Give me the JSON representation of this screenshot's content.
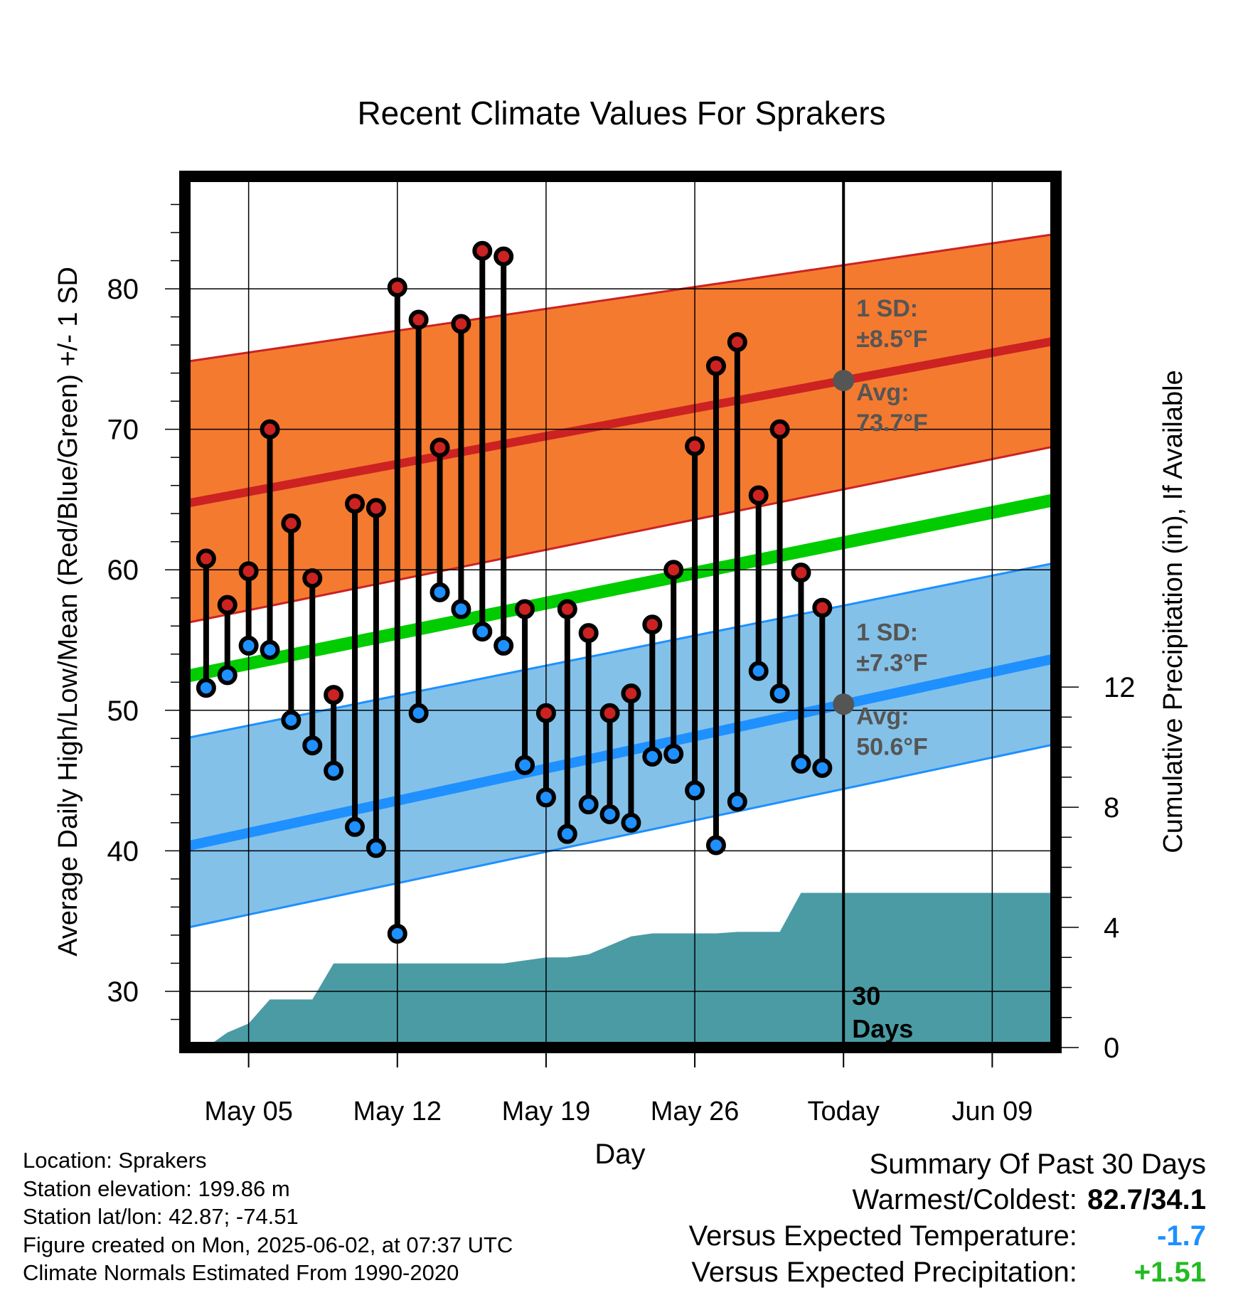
{
  "title": "Recent Climate Values For Sprakers",
  "colors": {
    "high": "#cc2222",
    "low": "#1e90ff",
    "mean": "#00cc00",
    "high_band": "#f47a30",
    "low_band": "#84c1e8",
    "precip": "#4a9ba4",
    "annotation": "#555555",
    "temp_anomaly": "#1e90ff",
    "precip_anomaly": "#22bb22"
  },
  "chart_data": {
    "type": "line",
    "title": "Recent Climate Values For Sprakers",
    "xlabel": "Day",
    "ylabel": "Average Daily High/Low/Mean (Red/Blue/Green) +/- 1 SD",
    "y2label": "Cumulative Precipitation (in), If Available",
    "ylim": [
      26,
      88
    ],
    "y2lim": [
      0,
      29
    ],
    "xlim": [
      "2025-05-02",
      "2025-06-12"
    ],
    "x_ticks": [
      {
        "date": "2025-05-05",
        "label": "May 05"
      },
      {
        "date": "2025-05-12",
        "label": "May 12"
      },
      {
        "date": "2025-05-19",
        "label": "May 19"
      },
      {
        "date": "2025-05-26",
        "label": "May 26"
      },
      {
        "date": "2025-06-02",
        "label": "Today"
      },
      {
        "date": "2025-06-09",
        "label": "Jun 09"
      }
    ],
    "y_ticks": [
      30,
      40,
      50,
      60,
      70,
      80
    ],
    "y2_ticks": [
      0,
      4,
      8,
      12
    ],
    "grid": true,
    "today": "2025-06-02",
    "today_label": [
      "30",
      "Days"
    ],
    "normals": {
      "high_avg": {
        "start": [
          "2025-05-02",
          64.7
        ],
        "end": [
          "2025-06-12",
          76.3
        ]
      },
      "high_upper": {
        "start": [
          "2025-05-02",
          74.8
        ],
        "end": [
          "2025-06-12",
          83.9
        ]
      },
      "high_lower": {
        "start": [
          "2025-05-02",
          56.2
        ],
        "end": [
          "2025-06-12",
          68.8
        ]
      },
      "mean_avg": {
        "start": [
          "2025-05-02",
          52.4
        ],
        "end": [
          "2025-06-12",
          65.0
        ]
      },
      "low_avg": {
        "start": [
          "2025-05-02",
          40.3
        ],
        "end": [
          "2025-06-12",
          53.7
        ]
      },
      "low_upper": {
        "start": [
          "2025-05-02",
          48.0
        ],
        "end": [
          "2025-06-12",
          60.5
        ]
      },
      "low_lower": {
        "start": [
          "2025-05-02",
          34.5
        ],
        "end": [
          "2025-06-12",
          47.6
        ]
      }
    },
    "annotations": {
      "high_sd": [
        "1 SD:",
        "±8.5°F"
      ],
      "high_avg": [
        "Avg:",
        "73.7°F"
      ],
      "low_sd": [
        "1 SD:",
        "±7.3°F"
      ],
      "low_avg": [
        "Avg:",
        "50.6°F"
      ],
      "high_avg_value": 73.7,
      "low_avg_value": 50.6
    },
    "series": [
      {
        "name": "High",
        "x": [
          "2025-05-03",
          "2025-05-04",
          "2025-05-05",
          "2025-05-06",
          "2025-05-07",
          "2025-05-08",
          "2025-05-09",
          "2025-05-10",
          "2025-05-11",
          "2025-05-12",
          "2025-05-13",
          "2025-05-14",
          "2025-05-15",
          "2025-05-16",
          "2025-05-17",
          "2025-05-18",
          "2025-05-19",
          "2025-05-20",
          "2025-05-21",
          "2025-05-22",
          "2025-05-23",
          "2025-05-24",
          "2025-05-25",
          "2025-05-26",
          "2025-05-27",
          "2025-05-28",
          "2025-05-29",
          "2025-05-30",
          "2025-05-31",
          "2025-06-01"
        ],
        "values": [
          60.8,
          57.5,
          59.9,
          70.0,
          63.3,
          59.4,
          51.1,
          64.7,
          64.4,
          80.1,
          77.8,
          68.7,
          77.5,
          82.7,
          82.3,
          57.2,
          49.8,
          57.2,
          55.5,
          49.8,
          51.2,
          56.1,
          60.0,
          68.8,
          74.5,
          76.2,
          65.3,
          70.0,
          59.8,
          57.3
        ]
      },
      {
        "name": "Low",
        "x": [
          "2025-05-03",
          "2025-05-04",
          "2025-05-05",
          "2025-05-06",
          "2025-05-07",
          "2025-05-08",
          "2025-05-09",
          "2025-05-10",
          "2025-05-11",
          "2025-05-12",
          "2025-05-13",
          "2025-05-14",
          "2025-05-15",
          "2025-05-16",
          "2025-05-17",
          "2025-05-18",
          "2025-05-19",
          "2025-05-20",
          "2025-05-21",
          "2025-05-22",
          "2025-05-23",
          "2025-05-24",
          "2025-05-25",
          "2025-05-26",
          "2025-05-27",
          "2025-05-28",
          "2025-05-29",
          "2025-05-30",
          "2025-05-31",
          "2025-06-01"
        ],
        "values": [
          51.6,
          52.5,
          54.6,
          54.3,
          49.3,
          47.5,
          45.7,
          41.7,
          40.2,
          34.1,
          49.8,
          58.4,
          57.2,
          55.6,
          54.6,
          46.1,
          43.8,
          41.2,
          43.3,
          42.6,
          42.0,
          46.7,
          46.9,
          44.3,
          40.4,
          43.5,
          52.8,
          51.2,
          46.2,
          45.9
        ]
      },
      {
        "name": "Cumulative Precipitation",
        "x": [
          "2025-05-02",
          "2025-05-03",
          "2025-05-04",
          "2025-05-05",
          "2025-05-06",
          "2025-05-07",
          "2025-05-08",
          "2025-05-09",
          "2025-05-10",
          "2025-05-11",
          "2025-05-12",
          "2025-05-13",
          "2025-05-14",
          "2025-05-15",
          "2025-05-16",
          "2025-05-17",
          "2025-05-18",
          "2025-05-19",
          "2025-05-20",
          "2025-05-21",
          "2025-05-22",
          "2025-05-23",
          "2025-05-24",
          "2025-05-25",
          "2025-05-26",
          "2025-05-27",
          "2025-05-28",
          "2025-05-29",
          "2025-05-30",
          "2025-05-31",
          "2025-06-01",
          "2025-06-02",
          "2025-06-12"
        ],
        "values": [
          0.0,
          0.0,
          0.5,
          0.8,
          1.6,
          1.6,
          1.6,
          2.8,
          2.8,
          2.8,
          2.8,
          2.8,
          2.8,
          2.8,
          2.8,
          2.8,
          2.9,
          3.0,
          3.0,
          3.1,
          3.4,
          3.7,
          3.8,
          3.8,
          3.8,
          3.8,
          3.85,
          3.85,
          3.85,
          5.15,
          5.15,
          5.15,
          5.15
        ]
      }
    ]
  },
  "footer": {
    "location": "Location: Sprakers",
    "elevation": "Station elevation: 199.86 m",
    "latlon": "Station lat/lon: 42.87; -74.51",
    "created": "Figure created on Mon, 2025-06-02, at 07:37 UTC",
    "normals": "Climate Normals Estimated From 1990-2020"
  },
  "summary": {
    "title": "Summary Of Past 30 Days",
    "warm_cold_label": "Warmest/Coldest:",
    "warm_cold_value": "82.7/34.1",
    "temp_label": "Versus Expected Temperature:",
    "temp_value": "-1.7",
    "precip_label": "Versus Expected Precipitation:",
    "precip_value": "+1.51"
  }
}
